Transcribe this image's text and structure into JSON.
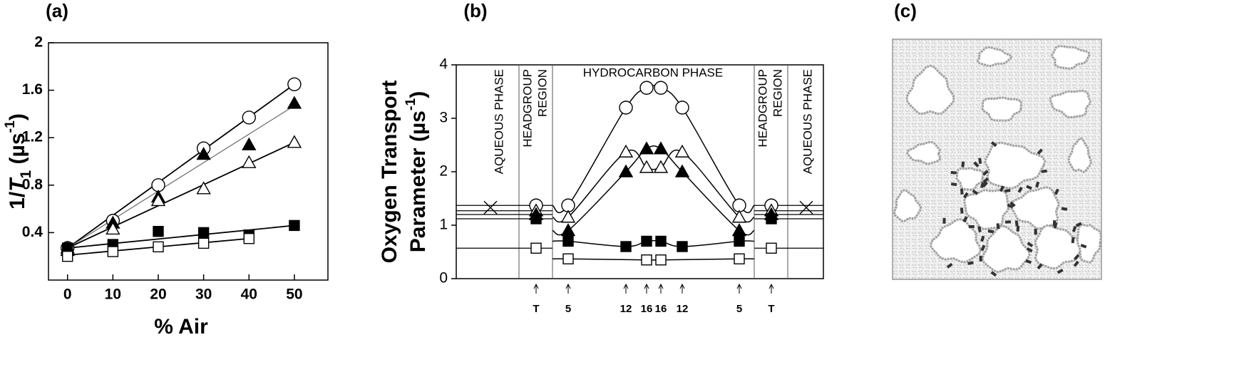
{
  "chart_data": [
    {
      "type": "scatter",
      "title": "(a)",
      "xlabel": "% Air",
      "ylabel": [
        "1/",
        "T",
        "1",
        "  (µs",
        "-1",
        ")"
      ],
      "xlim": [
        -4.2,
        57.4
      ],
      "ylim": [
        0,
        2
      ],
      "xticks": [
        0,
        10,
        20,
        30,
        40,
        50
      ],
      "yticks": [
        0.4,
        0.8,
        1.2,
        1.6,
        2
      ],
      "x": [
        0,
        10,
        20,
        30,
        40,
        50
      ],
      "series": [
        {
          "marker": "circle",
          "filled": false,
          "values": [
            0.27,
            0.5,
            0.8,
            1.11,
            1.37,
            1.65
          ],
          "fit": {
            "x": [
              0,
              50
            ],
            "y": [
              0.27,
              1.65
            ]
          }
        },
        {
          "marker": "triangle",
          "filled": true,
          "values": [
            0.27,
            0.48,
            0.7,
            1.06,
            1.14,
            1.49
          ],
          "fit": {
            "x": [
              0,
              50
            ],
            "y": [
              0.27,
              1.47
            ]
          }
        },
        {
          "marker": "triangle",
          "filled": false,
          "values": [
            0.25,
            0.43,
            0.67,
            0.77,
            0.99,
            1.16
          ],
          "fit": {
            "x": [
              0,
              50
            ],
            "y": [
              0.27,
              1.16
            ]
          }
        },
        {
          "marker": "square",
          "filled": true,
          "values": [
            0.27,
            0.3,
            0.41,
            0.4,
            0.38,
            0.46
          ],
          "fit": {
            "x": [
              0,
              50
            ],
            "y": [
              0.27,
              0.46
            ]
          }
        },
        {
          "marker": "square",
          "filled": false,
          "values": [
            0.2,
            0.24,
            0.28,
            0.31,
            0.35,
            null
          ],
          "fit": {
            "x": [
              0,
              40
            ],
            "y": [
              0.21,
              0.35
            ]
          }
        }
      ]
    },
    {
      "type": "line",
      "title": "(b)",
      "ylabel": [
        "Oxygen Transport",
        "Parameter (µs",
        "-1",
        ")"
      ],
      "regions": [
        "AQUEOUS PHASE",
        [
          "HEADGROUP",
          "REGION"
        ],
        "HYDROCARBON PHASE",
        [
          "HEADGROUP",
          "REGION"
        ],
        "AQUEOUS PHASE"
      ],
      "categories": [
        null,
        "T",
        "5",
        "12",
        "16",
        "16",
        "12",
        "5",
        "T",
        null
      ],
      "ylim": [
        0,
        4
      ],
      "yticks": [
        0,
        1,
        2,
        3,
        4
      ],
      "series": [
        {
          "marker": "circle",
          "filled": false,
          "values": [
            null,
            1.37,
            1.37,
            3.2,
            3.57,
            3.57,
            3.2,
            1.37,
            1.37,
            null
          ]
        },
        {
          "marker": "triangle",
          "filled": false,
          "values": [
            null,
            1.27,
            1.15,
            2.37,
            2.08,
            2.08,
            2.37,
            1.15,
            1.27,
            null
          ]
        },
        {
          "marker": "triangle",
          "filled": true,
          "values": [
            null,
            1.2,
            0.9,
            2.0,
            2.43,
            2.43,
            2.0,
            0.9,
            1.2,
            null
          ]
        },
        {
          "marker": "square",
          "filled": true,
          "values": [
            null,
            1.12,
            0.7,
            0.6,
            0.7,
            0.7,
            0.6,
            0.7,
            1.12,
            null
          ]
        },
        {
          "marker": "square",
          "filled": false,
          "values": [
            null,
            0.57,
            0.37,
            null,
            0.35,
            0.35,
            null,
            0.37,
            0.57,
            null
          ]
        },
        {
          "marker": "x",
          "filled": false,
          "values": [
            1.33,
            null,
            null,
            null,
            null,
            null,
            null,
            null,
            null,
            1.33
          ]
        }
      ]
    },
    {
      "type": "image",
      "title": "(c)"
    }
  ]
}
